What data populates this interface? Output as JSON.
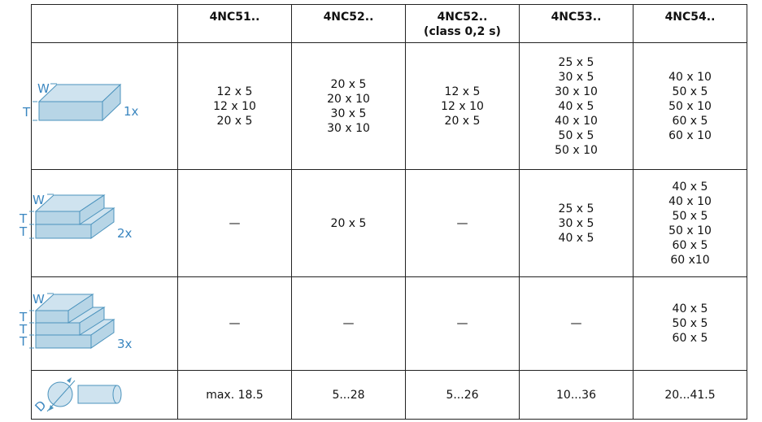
{
  "table": {
    "columns": [
      {
        "name": "4NC51.."
      },
      {
        "name": "4NC52.."
      },
      {
        "name": "4NC52..",
        "note": "(class 0,2 s)"
      },
      {
        "name": "4NC53.."
      },
      {
        "name": "4NC54.."
      }
    ],
    "rows": [
      {
        "icon": {
          "width": "W",
          "thickness": [
            "T"
          ],
          "count": "1x"
        },
        "cells": [
          [
            "12 x 5",
            "12 x 10",
            "20 x 5"
          ],
          [
            "20 x 5",
            "20 x 10",
            "30 x 5",
            "30 x 10"
          ],
          [
            "12 x 5",
            "12 x 10",
            "20 x 5"
          ],
          [
            "25 x 5",
            "30 x 5",
            "30 x 10",
            "40 x 5",
            "40 x 10",
            "50 x 5",
            "50 x 10"
          ],
          [
            "40 x 10",
            "50 x 5",
            "50 x 10",
            "60 x 5",
            "60 x 10"
          ]
        ]
      },
      {
        "icon": {
          "width": "W",
          "thickness": [
            "T",
            "T"
          ],
          "count": "2x"
        },
        "cells": [
          [
            "—"
          ],
          [
            "20 x 5"
          ],
          [
            "—"
          ],
          [
            "25 x 5",
            "30 x 5",
            "40 x 5"
          ],
          [
            "40 x 5",
            "40 x 10",
            "50 x 5",
            "50 x 10",
            "60 x 5",
            "60 x10"
          ]
        ]
      },
      {
        "icon": {
          "width": "W",
          "thickness": [
            "T",
            "T",
            "T"
          ],
          "count": "3x"
        },
        "cells": [
          [
            "—"
          ],
          [
            "—"
          ],
          [
            "—"
          ],
          [
            "—"
          ],
          [
            "40 x 5",
            "50 x 5",
            "60 x 5"
          ]
        ]
      },
      {
        "icon": {
          "diameter": "D"
        },
        "cells": [
          [
            "max. 18.5"
          ],
          [
            "5...28"
          ],
          [
            "5...26"
          ],
          [
            "10...36"
          ],
          [
            "20...41.5"
          ]
        ]
      }
    ]
  }
}
